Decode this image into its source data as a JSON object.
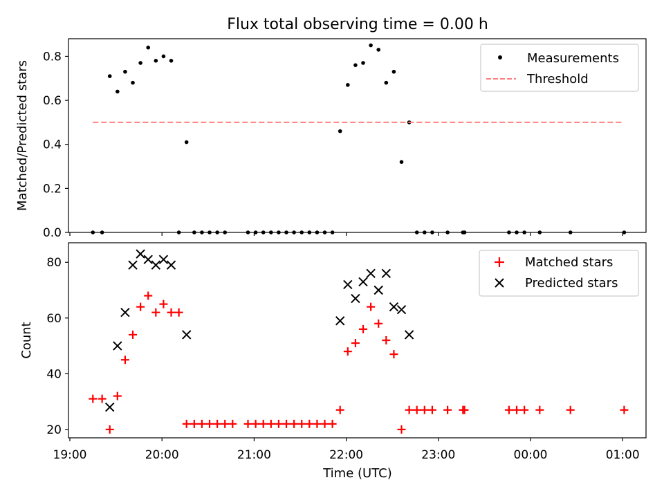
{
  "title": "Flux total observing time = 0.00 h",
  "xlabel": "Time (UTC)",
  "x_ticks": [
    "19:00",
    "20:00",
    "21:00",
    "22:00",
    "23:00",
    "00:00",
    "01:00"
  ],
  "chart_data": [
    {
      "type": "scatter",
      "ylabel": "Matched/Predicted stars",
      "xlim": [
        "19:00",
        "01:15"
      ],
      "ylim": [
        0,
        0.88
      ],
      "yticks": [
        "0.0",
        "0.2",
        "0.4",
        "0.6",
        "0.8"
      ],
      "legend_position": "top-right",
      "series": [
        {
          "name": "Measurements",
          "marker": "dot",
          "color": "#000000",
          "points": [
            [
              "19:15",
              0
            ],
            [
              "19:21",
              0
            ],
            [
              "19:26",
              0.71
            ],
            [
              "19:31",
              0.64
            ],
            [
              "19:36",
              0.73
            ],
            [
              "19:41",
              0.68
            ],
            [
              "19:46",
              0.77
            ],
            [
              "19:51",
              0.84
            ],
            [
              "19:56",
              0.78
            ],
            [
              "20:01",
              0.8
            ],
            [
              "20:06",
              0.78
            ],
            [
              "20:11",
              0
            ],
            [
              "20:16",
              0.41
            ],
            [
              "20:21",
              0
            ],
            [
              "20:26",
              0
            ],
            [
              "20:31",
              0
            ],
            [
              "20:36",
              0
            ],
            [
              "20:41",
              0
            ],
            [
              "20:56",
              0
            ],
            [
              "21:01",
              0
            ],
            [
              "21:06",
              0
            ],
            [
              "21:11",
              0
            ],
            [
              "21:16",
              0
            ],
            [
              "21:21",
              0
            ],
            [
              "21:26",
              0
            ],
            [
              "21:31",
              0
            ],
            [
              "21:36",
              0
            ],
            [
              "21:41",
              0
            ],
            [
              "21:46",
              0
            ],
            [
              "21:51",
              0
            ],
            [
              "21:56",
              0.46
            ],
            [
              "22:01",
              0.67
            ],
            [
              "22:06",
              0.76
            ],
            [
              "22:11",
              0.77
            ],
            [
              "22:16",
              0.85
            ],
            [
              "22:21",
              0.83
            ],
            [
              "22:26",
              0.68
            ],
            [
              "22:31",
              0.73
            ],
            [
              "22:36",
              0.32
            ],
            [
              "22:41",
              0.5
            ],
            [
              "22:46",
              0
            ],
            [
              "22:51",
              0
            ],
            [
              "22:56",
              0
            ],
            [
              "23:06",
              0
            ],
            [
              "23:16",
              0
            ],
            [
              "23:17",
              0
            ],
            [
              "23:46",
              0
            ],
            [
              "23:51",
              0
            ],
            [
              "23:56",
              0
            ],
            [
              "00:06",
              0
            ],
            [
              "00:26",
              0
            ],
            [
              "01:01",
              0
            ]
          ]
        },
        {
          "name": "Threshold",
          "style": "dashed",
          "color": "#ff7f7f",
          "points": [
            [
              "19:15",
              0.5
            ],
            [
              "01:00",
              0.5
            ]
          ]
        }
      ]
    },
    {
      "type": "scatter",
      "ylabel": "Count",
      "xlim": [
        "19:00",
        "01:15"
      ],
      "ylim": [
        17,
        87
      ],
      "yticks": [
        "20",
        "40",
        "60",
        "80"
      ],
      "legend_position": "top-right",
      "series": [
        {
          "name": "Matched stars",
          "marker": "plus",
          "color": "#ff0000",
          "points": [
            [
              "19:15",
              31
            ],
            [
              "19:21",
              31
            ],
            [
              "19:26",
              20
            ],
            [
              "19:31",
              32
            ],
            [
              "19:36",
              45
            ],
            [
              "19:41",
              54
            ],
            [
              "19:46",
              64
            ],
            [
              "19:51",
              68
            ],
            [
              "19:56",
              62
            ],
            [
              "20:01",
              65
            ],
            [
              "20:06",
              62
            ],
            [
              "20:11",
              62
            ],
            [
              "20:16",
              22
            ],
            [
              "20:21",
              22
            ],
            [
              "20:26",
              22
            ],
            [
              "20:31",
              22
            ],
            [
              "20:36",
              22
            ],
            [
              "20:41",
              22
            ],
            [
              "20:46",
              22
            ],
            [
              "20:56",
              22
            ],
            [
              "21:01",
              22
            ],
            [
              "21:06",
              22
            ],
            [
              "21:11",
              22
            ],
            [
              "21:16",
              22
            ],
            [
              "21:21",
              22
            ],
            [
              "21:26",
              22
            ],
            [
              "21:31",
              22
            ],
            [
              "21:36",
              22
            ],
            [
              "21:41",
              22
            ],
            [
              "21:46",
              22
            ],
            [
              "21:51",
              22
            ],
            [
              "21:56",
              27
            ],
            [
              "22:01",
              48
            ],
            [
              "22:06",
              51
            ],
            [
              "22:11",
              56
            ],
            [
              "22:16",
              64
            ],
            [
              "22:21",
              58
            ],
            [
              "22:26",
              52
            ],
            [
              "22:31",
              47
            ],
            [
              "22:36",
              20
            ],
            [
              "22:41",
              27
            ],
            [
              "22:46",
              27
            ],
            [
              "22:51",
              27
            ],
            [
              "22:56",
              27
            ],
            [
              "23:06",
              27
            ],
            [
              "23:16",
              27
            ],
            [
              "23:17",
              27
            ],
            [
              "23:46",
              27
            ],
            [
              "23:51",
              27
            ],
            [
              "23:56",
              27
            ],
            [
              "00:06",
              27
            ],
            [
              "00:26",
              27
            ],
            [
              "01:01",
              27
            ]
          ]
        },
        {
          "name": "Predicted stars",
          "marker": "x",
          "color": "#000000",
          "points": [
            [
              "19:26",
              28
            ],
            [
              "19:31",
              50
            ],
            [
              "19:36",
              62
            ],
            [
              "19:41",
              79
            ],
            [
              "19:46",
              83
            ],
            [
              "19:51",
              81
            ],
            [
              "19:56",
              79
            ],
            [
              "20:01",
              81
            ],
            [
              "20:06",
              79
            ],
            [
              "20:16",
              54
            ],
            [
              "21:56",
              59
            ],
            [
              "22:01",
              72
            ],
            [
              "22:06",
              67
            ],
            [
              "22:11",
              73
            ],
            [
              "22:16",
              76
            ],
            [
              "22:21",
              70
            ],
            [
              "22:26",
              76
            ],
            [
              "22:31",
              64
            ],
            [
              "22:36",
              63
            ],
            [
              "22:41",
              54
            ]
          ]
        }
      ]
    }
  ]
}
